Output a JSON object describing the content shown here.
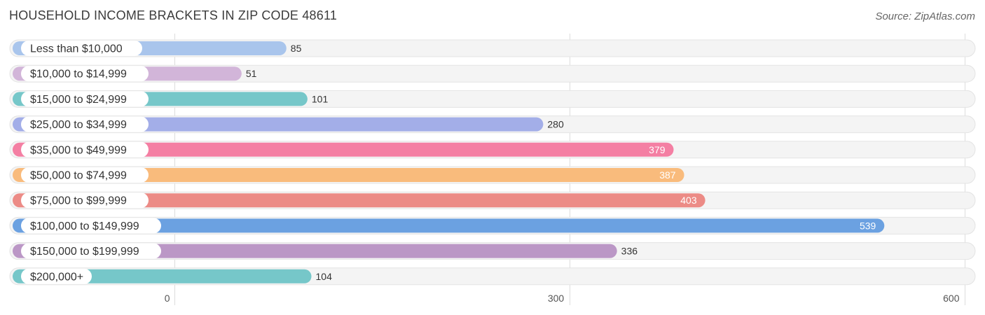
{
  "title": "HOUSEHOLD INCOME BRACKETS IN ZIP CODE 48611",
  "source": "Source: ZipAtlas.com",
  "chart_data": {
    "type": "bar",
    "orientation": "horizontal",
    "categories": [
      "Less than $10,000",
      "$10,000 to $14,999",
      "$15,000 to $24,999",
      "$25,000 to $34,999",
      "$35,000 to $49,999",
      "$50,000 to $74,999",
      "$75,000 to $99,999",
      "$100,000 to $149,999",
      "$150,000 to $199,999",
      "$200,000+"
    ],
    "values": [
      85,
      51,
      101,
      280,
      379,
      387,
      403,
      539,
      336,
      104
    ],
    "value_labels": [
      "85",
      "51",
      "101",
      "280",
      "379",
      "387",
      "403",
      "539",
      "336",
      "104"
    ],
    "colors": [
      "#a9c5ec",
      "#d2b5d9",
      "#76c7c9",
      "#a3aee8",
      "#f47fa3",
      "#f9bb7c",
      "#ec8b86",
      "#6ba1e1",
      "#bb97c6",
      "#76c7c9"
    ],
    "xlim": [
      0,
      600
    ],
    "ticks": [
      0,
      300,
      600
    ],
    "tick_labels": [
      "0",
      "300",
      "600"
    ],
    "grid": true,
    "legend": "none"
  }
}
